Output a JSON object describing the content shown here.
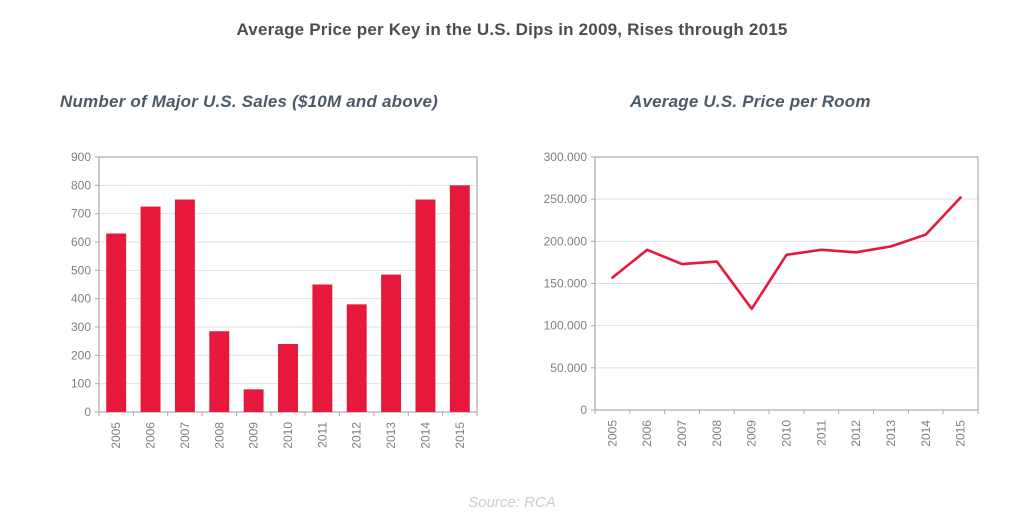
{
  "page": {
    "title": "Average Price per Key in the U.S. Dips in 2009, Rises through 2015",
    "source": "Source: RCA"
  },
  "colors": {
    "accent_red": "#e6193c",
    "title_text": "#4d4d4f",
    "subtitle_text": "#4c5a68",
    "axis_text": "#7f7f7f",
    "frame": "#a9abad",
    "gridline": "#e2e2e2",
    "source_text": "#c9ced3",
    "background": "#ffffff"
  },
  "chart_data": [
    {
      "type": "bar",
      "title": "Number of Major U.S. Sales ($10M and above)",
      "categories": [
        "2005",
        "2006",
        "2007",
        "2008",
        "2009",
        "2010",
        "2011",
        "2012",
        "2013",
        "2014",
        "2015"
      ],
      "values": [
        630,
        725,
        750,
        285,
        80,
        240,
        450,
        380,
        485,
        750,
        800
      ],
      "xlabel": "",
      "ylabel": "",
      "ylim": [
        0,
        900
      ],
      "yticks": {
        "values": [
          0,
          100,
          200,
          300,
          400,
          500,
          600,
          700,
          800,
          900
        ],
        "labels": [
          "0",
          "100",
          "200",
          "300",
          "400",
          "500",
          "600",
          "700",
          "800",
          "900"
        ]
      },
      "grid": true,
      "legend": "none",
      "x_label_rotation": -90
    },
    {
      "type": "line",
      "title": "Average U.S. Price per Room",
      "categories": [
        "2005",
        "2006",
        "2007",
        "2008",
        "2009",
        "2010",
        "2011",
        "2012",
        "2013",
        "2014",
        "2015"
      ],
      "values": [
        157000,
        190000,
        173000,
        176000,
        120000,
        184000,
        190000,
        187000,
        194000,
        208000,
        252000
      ],
      "xlabel": "",
      "ylabel": "",
      "ylim": [
        0,
        300000
      ],
      "yticks": {
        "values": [
          0,
          50000,
          100000,
          150000,
          200000,
          250000,
          300000
        ],
        "labels": [
          "0",
          "50.000",
          "100.000",
          "150.000",
          "200.000",
          "250.000",
          "300.000"
        ]
      },
      "grid": true,
      "legend": "none",
      "x_label_rotation": -90
    }
  ]
}
